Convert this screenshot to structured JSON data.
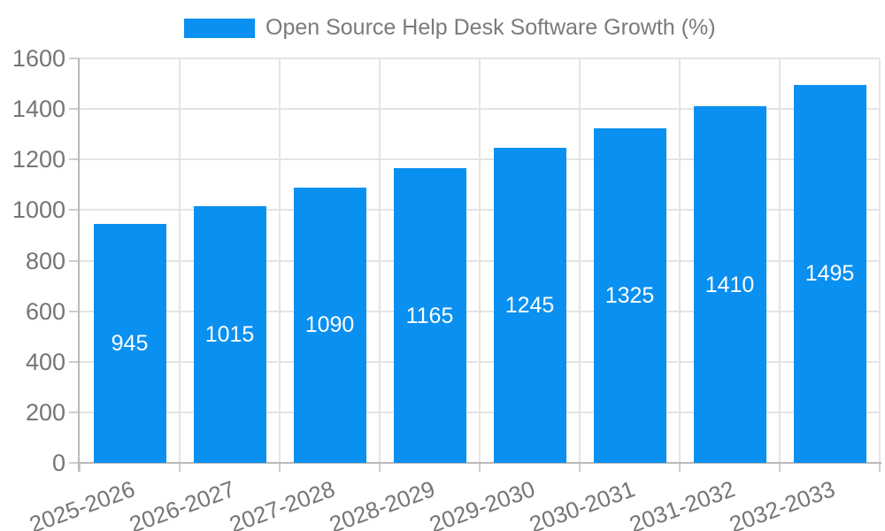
{
  "chart_data": {
    "type": "bar",
    "title": "Open Source Help Desk Software Growth (%)",
    "legend": {
      "position": "top-center",
      "entries": [
        {
          "label": "Open Source Help Desk Software Growth (%)",
          "color": "#0a90f0"
        }
      ]
    },
    "categories": [
      "2025-2026",
      "2026-2027",
      "2027-2028",
      "2028-2029",
      "2029-2030",
      "2030-2031",
      "2031-2032",
      "2032-2033"
    ],
    "series": [
      {
        "name": "Open Source Help Desk Software Growth (%)",
        "values": [
          945,
          1015,
          1090,
          1165,
          1245,
          1325,
          1410,
          1495
        ]
      }
    ],
    "bar_value_labels": [
      "945",
      "1015",
      "1090",
      "1165",
      "1245",
      "1325",
      "1410",
      "1495"
    ],
    "xlabel": "",
    "ylabel": "",
    "ylim": [
      0,
      1600
    ],
    "ytick_step": 200,
    "ytick_labels": [
      "0",
      "200",
      "400",
      "600",
      "800",
      "1000",
      "1200",
      "1400",
      "1600"
    ],
    "grid": "on",
    "xtick_rotation_deg": 20,
    "colors": {
      "bar": "#0a90f0",
      "gridline": "#e4e4e4",
      "tick": "#cdcdcd",
      "axis_spine": "#b9b9b9",
      "tick_text": "#757575",
      "legend_text": "#7a7a7a",
      "bar_value_text": "#ffffff",
      "background": "#ffffff"
    }
  }
}
